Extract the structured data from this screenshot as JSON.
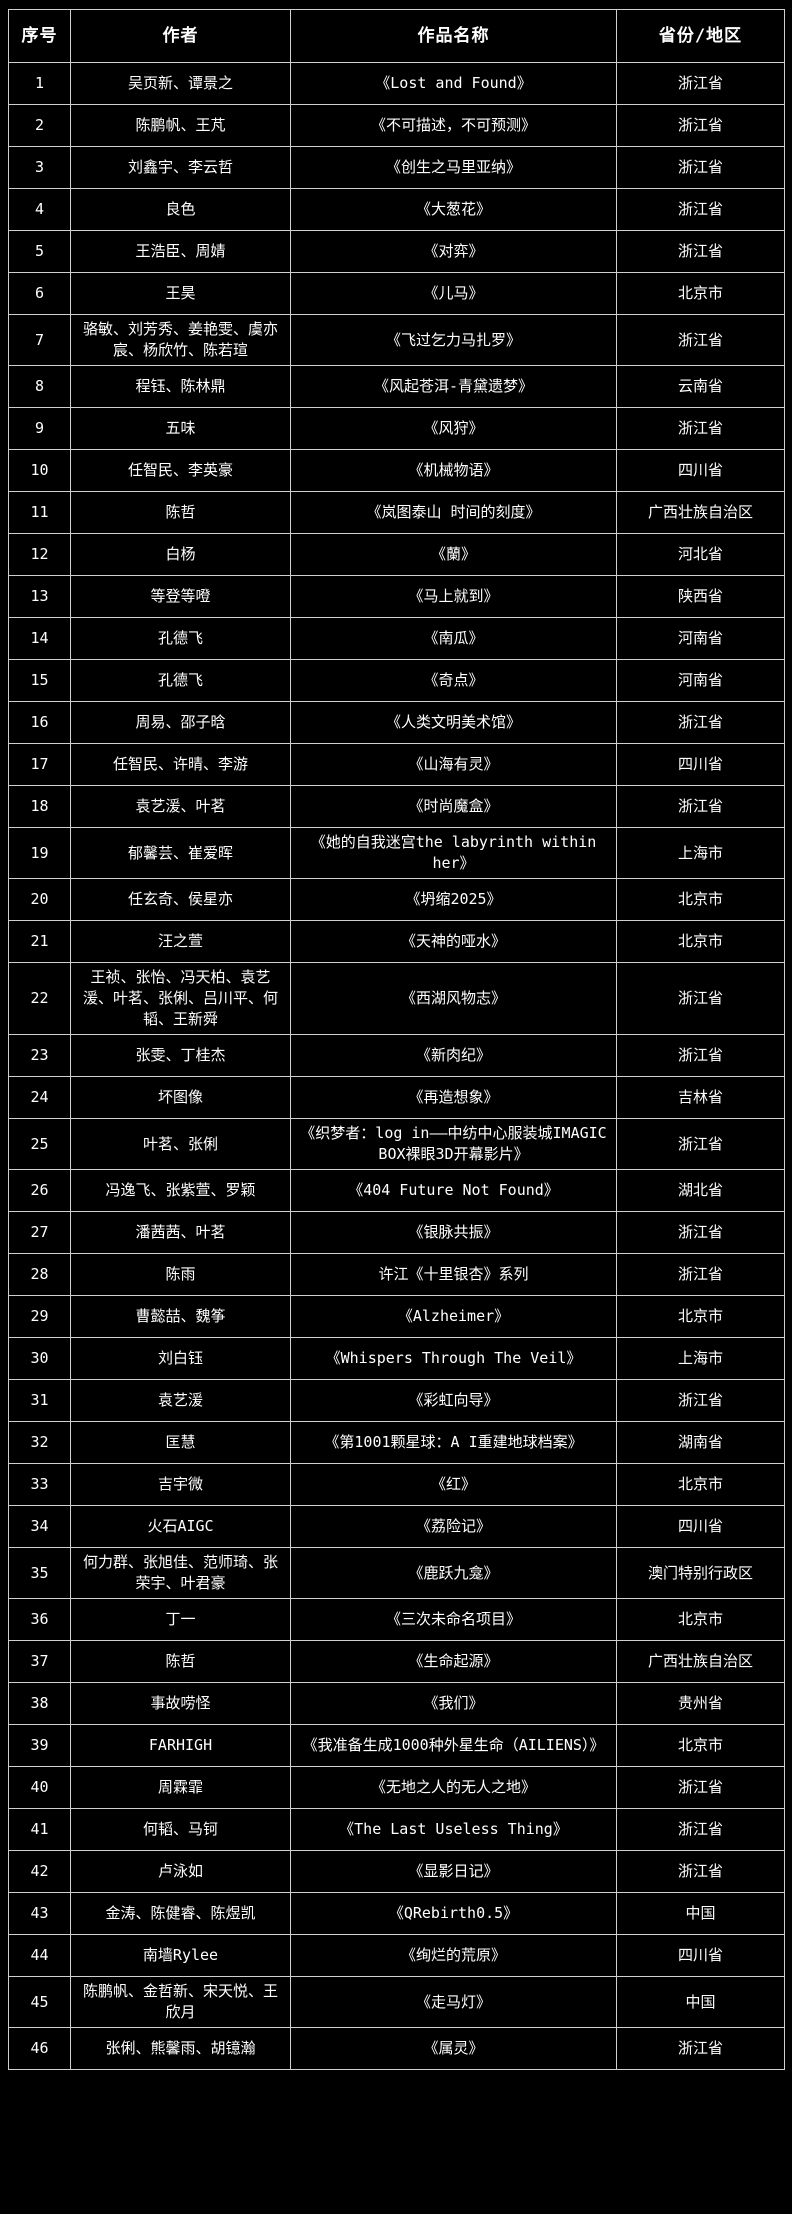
{
  "colors": {
    "background": "#000000",
    "border": "#cfcfcf",
    "text": "#ffffff"
  },
  "table": {
    "headers": [
      "序号",
      "作者",
      "作品名称",
      "省份/地区"
    ],
    "rows": [
      {
        "no": "1",
        "author": "吴页新、谭景之",
        "title": "《Lost and Found》",
        "region": "浙江省"
      },
      {
        "no": "2",
        "author": "陈鹏帆、王芃",
        "title": "《不可描述，不可预测》",
        "region": "浙江省"
      },
      {
        "no": "3",
        "author": "刘鑫宇、李云哲",
        "title": "《创生之马里亚纳》",
        "region": "浙江省"
      },
      {
        "no": "4",
        "author": "良色",
        "title": "《大葱花》",
        "region": "浙江省"
      },
      {
        "no": "5",
        "author": "王浩臣、周婧",
        "title": "《对弈》",
        "region": "浙江省"
      },
      {
        "no": "6",
        "author": "王昊",
        "title": "《儿马》",
        "region": "北京市"
      },
      {
        "no": "7",
        "author": "骆敏、刘芳秀、姜艳雯、虞亦宸、杨欣竹、陈若瑄",
        "title": "《飞过乞力马扎罗》",
        "region": "浙江省"
      },
      {
        "no": "8",
        "author": "程钰、陈林鼎",
        "title": "《风起苍洱-青黛遗梦》",
        "region": "云南省"
      },
      {
        "no": "9",
        "author": "五味",
        "title": "《风狩》",
        "region": "浙江省"
      },
      {
        "no": "10",
        "author": "任智民、李英豪",
        "title": "《机械物语》",
        "region": "四川省"
      },
      {
        "no": "11",
        "author": "陈哲",
        "title": "《岚图泰山 时间的刻度》",
        "region": "广西壮族自治区"
      },
      {
        "no": "12",
        "author": "白杨",
        "title": "《蘭》",
        "region": "河北省"
      },
      {
        "no": "13",
        "author": "等登等噔",
        "title": "《马上就到》",
        "region": "陕西省"
      },
      {
        "no": "14",
        "author": "孔德飞",
        "title": "《南瓜》",
        "region": "河南省"
      },
      {
        "no": "15",
        "author": "孔德飞",
        "title": "《奇点》",
        "region": "河南省"
      },
      {
        "no": "16",
        "author": "周易、邵子晗",
        "title": "《人类文明美术馆》",
        "region": "浙江省"
      },
      {
        "no": "17",
        "author": "任智民、许晴、李游",
        "title": "《山海有灵》",
        "region": "四川省"
      },
      {
        "no": "18",
        "author": "袁艺湲、叶茗",
        "title": "《时尚魔盒》",
        "region": "浙江省"
      },
      {
        "no": "19",
        "author": "郁馨芸、崔爱晖",
        "title": "《她的自我迷宫the labyrinth within her》",
        "region": "上海市"
      },
      {
        "no": "20",
        "author": "任玄奇、侯星亦",
        "title": "《坍缩2025》",
        "region": "北京市"
      },
      {
        "no": "21",
        "author": "汪之萱",
        "title": "《天神的哑水》",
        "region": "北京市"
      },
      {
        "no": "22",
        "author": "王祯、张怡、冯天柏、袁艺湲、叶茗、张俐、吕川平、何韬、王新舜",
        "title": "《西湖风物志》",
        "region": "浙江省"
      },
      {
        "no": "23",
        "author": "张雯、丁桂杰",
        "title": "《新肉纪》",
        "region": "浙江省"
      },
      {
        "no": "24",
        "author": "坏图像",
        "title": "《再造想象》",
        "region": "吉林省"
      },
      {
        "no": "25",
        "author": "叶茗、张俐",
        "title": "《织梦者：log in——中纺中心服装城IMAGIC BOX裸眼3D开幕影片》",
        "region": "浙江省"
      },
      {
        "no": "26",
        "author": "冯逸飞、张紫萱、罗颖",
        "title": "《404 Future Not Found》",
        "region": "湖北省"
      },
      {
        "no": "27",
        "author": "潘茜茜、叶茗",
        "title": "《银脉共振》",
        "region": "浙江省"
      },
      {
        "no": "28",
        "author": "陈雨",
        "title": "许江《十里银杏》系列",
        "region": "浙江省"
      },
      {
        "no": "29",
        "author": "曹懿喆、魏筝",
        "title": "《Alzheimer》",
        "region": "北京市"
      },
      {
        "no": "30",
        "author": "刘白钰",
        "title": "《Whispers Through The Veil》",
        "region": "上海市"
      },
      {
        "no": "31",
        "author": "袁艺湲",
        "title": "《彩虹向导》",
        "region": "浙江省"
      },
      {
        "no": "32",
        "author": "匡慧",
        "title": "《第1001颗星球：A I重建地球档案》",
        "region": "湖南省"
      },
      {
        "no": "33",
        "author": "吉宇微",
        "title": "《红》",
        "region": "北京市"
      },
      {
        "no": "34",
        "author": "火石AIGC",
        "title": "《荔险记》",
        "region": "四川省"
      },
      {
        "no": "35",
        "author": "何力群、张旭佳、范师琦、张荣宇、叶君豪",
        "title": "《鹿跃九龛》",
        "region": "澳门特别行政区"
      },
      {
        "no": "36",
        "author": "丁一",
        "title": "《三次未命名项目》",
        "region": "北京市"
      },
      {
        "no": "37",
        "author": "陈哲",
        "title": "《生命起源》",
        "region": "广西壮族自治区"
      },
      {
        "no": "38",
        "author": "事故唠怪",
        "title": "《我们》",
        "region": "贵州省"
      },
      {
        "no": "39",
        "author": "FARHIGH",
        "title": "《我准备生成1000种外星生命（AILIENS）》",
        "region": "北京市"
      },
      {
        "no": "40",
        "author": "周霖霏",
        "title": "《无地之人的无人之地》",
        "region": "浙江省"
      },
      {
        "no": "41",
        "author": "何韬、马钶",
        "title": "《The Last Useless Thing》",
        "region": "浙江省"
      },
      {
        "no": "42",
        "author": "卢泳如",
        "title": "《显影日记》",
        "region": "浙江省"
      },
      {
        "no": "43",
        "author": "金涛、陈健睿、陈煜凯",
        "title": "《QRebirth0.5》",
        "region": "中国"
      },
      {
        "no": "44",
        "author": "南墙Rylee",
        "title": "《绚烂的荒原》",
        "region": "四川省"
      },
      {
        "no": "45",
        "author": "陈鹏帆、金哲新、宋天悦、王欣月",
        "title": "《走马灯》",
        "region": "中国"
      },
      {
        "no": "46",
        "author": "张俐、熊馨雨、胡镱瀚",
        "title": "《属灵》",
        "region": "浙江省"
      }
    ]
  }
}
